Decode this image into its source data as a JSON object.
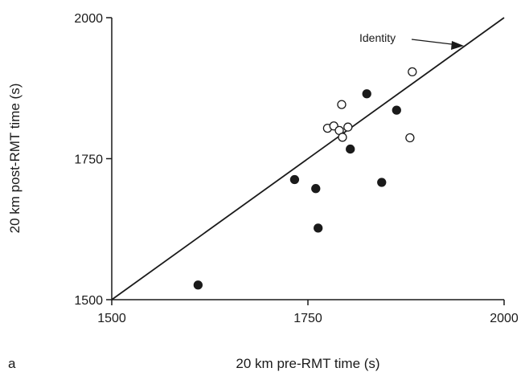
{
  "chart_data": {
    "type": "scatter",
    "panel_label": "a",
    "xlabel": "20 km pre-RMT time (s)",
    "ylabel": "20 km post-RMT time (s)",
    "xlim": [
      1500,
      2000
    ],
    "ylim": [
      1500,
      2000
    ],
    "x_ticks": [
      1500,
      1750,
      2000
    ],
    "y_ticks": [
      1500,
      1750,
      2000
    ],
    "grid": false,
    "identity_line": {
      "label": "Identity",
      "from": [
        1500,
        1500
      ],
      "to": [
        2000,
        2000
      ]
    },
    "series": [
      {
        "marker": "filled-circle",
        "color": "#1a1a1a",
        "points": [
          [
            1610,
            1526
          ],
          [
            1733,
            1713
          ],
          [
            1760,
            1697
          ],
          [
            1763,
            1627
          ],
          [
            1804,
            1767
          ],
          [
            1825,
            1865
          ],
          [
            1844,
            1708
          ],
          [
            1863,
            1836
          ]
        ]
      },
      {
        "marker": "open-circle",
        "color": "#1a1a1a",
        "points": [
          [
            1775,
            1804
          ],
          [
            1783,
            1808
          ],
          [
            1790,
            1800
          ],
          [
            1794,
            1788
          ],
          [
            1793,
            1846
          ],
          [
            1801,
            1806
          ],
          [
            1880,
            1787
          ],
          [
            1883,
            1904
          ]
        ]
      }
    ]
  }
}
